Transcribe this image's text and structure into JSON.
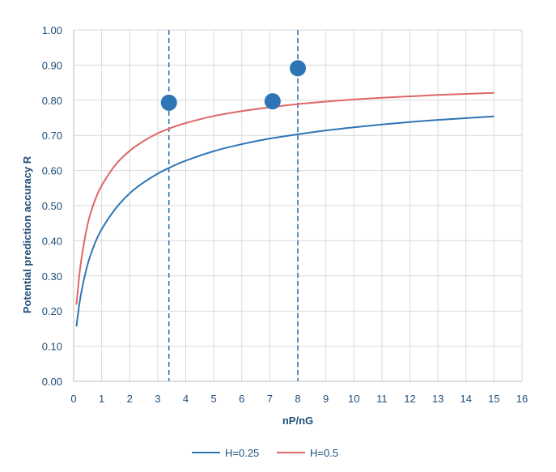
{
  "chart_data": {
    "type": "line",
    "title": "",
    "xlabel": "nP/nG",
    "ylabel": "Potential prediction accuracy R",
    "xlim": [
      0,
      16
    ],
    "ylim": [
      0,
      1
    ],
    "grid": true,
    "legend_position": "bottom",
    "x_ticks": [
      "0",
      "1",
      "2",
      "3",
      "4",
      "5",
      "6",
      "7",
      "8",
      "9",
      "10",
      "11",
      "12",
      "13",
      "14",
      "15",
      "16"
    ],
    "y_ticks": [
      "0.00",
      "0.10",
      "0.20",
      "0.30",
      "0.40",
      "0.50",
      "0.60",
      "0.70",
      "0.80",
      "0.90",
      "1.00"
    ],
    "series": [
      {
        "name": "H=0.25",
        "color": "#2e75b6",
        "x": [
          0.1,
          0.25,
          0.5,
          0.75,
          1,
          1.5,
          2,
          2.5,
          3,
          3.5,
          4,
          5,
          6,
          7,
          8,
          9,
          10,
          11,
          12,
          13,
          14,
          15
        ],
        "y": [
          0.156,
          0.243,
          0.333,
          0.391,
          0.433,
          0.492,
          0.535,
          0.566,
          0.591,
          0.611,
          0.628,
          0.655,
          0.675,
          0.691,
          0.703,
          0.714,
          0.723,
          0.731,
          0.738,
          0.744,
          0.749,
          0.754
        ]
      },
      {
        "name": "H=0.5",
        "color": "#e06666",
        "x": [
          0.1,
          0.25,
          0.5,
          0.75,
          1,
          1.5,
          2,
          2.5,
          3,
          3.5,
          4,
          5,
          6,
          7,
          8,
          9,
          10,
          11,
          12,
          13,
          14,
          15
        ],
        "y": [
          0.218,
          0.333,
          0.447,
          0.513,
          0.557,
          0.617,
          0.656,
          0.684,
          0.706,
          0.722,
          0.735,
          0.755,
          0.769,
          0.78,
          0.789,
          0.796,
          0.802,
          0.807,
          0.811,
          0.815,
          0.818,
          0.821
        ]
      }
    ],
    "markers": [
      {
        "x": 3.4,
        "y": 0.793,
        "color": "#2e75b6"
      },
      {
        "x": 7.1,
        "y": 0.797,
        "color": "#2e75b6"
      },
      {
        "x": 8.0,
        "y": 0.891,
        "color": "#2e75b6"
      }
    ],
    "vlines": [
      3.4,
      8.0
    ]
  }
}
